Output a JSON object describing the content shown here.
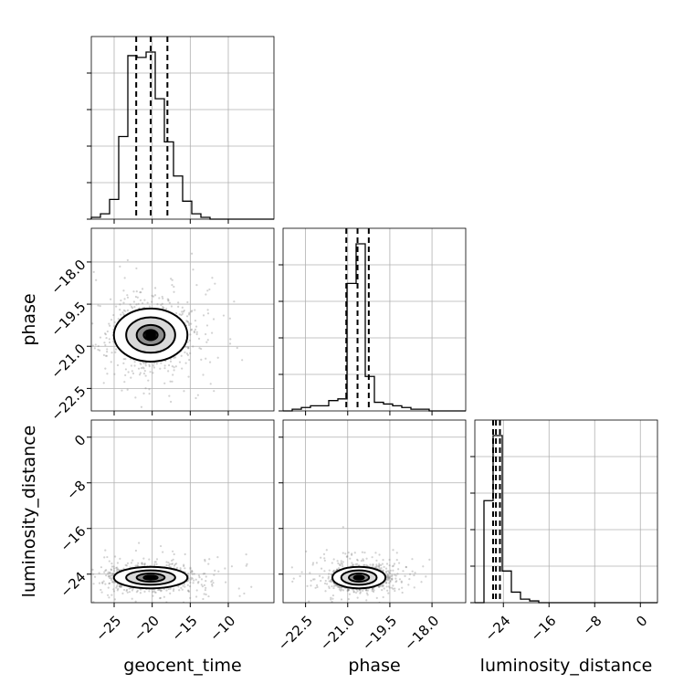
{
  "chart_data": {
    "type": "corner",
    "parameters": [
      "geocent_time",
      "phase",
      "luminosity_distance"
    ],
    "axis_labels": {
      "x": [
        "geocent_time",
        "phase",
        "luminosity_distance"
      ],
      "y": [
        "",
        "phase",
        "luminosity_distance"
      ]
    },
    "ranges": {
      "geocent_time": [
        -28,
        -4
      ],
      "phase": [
        -23.3,
        -16.8
      ],
      "luminosity_distance": [
        -29,
        3
      ]
    },
    "ticks": {
      "geocent_time": {
        "values": [
          -25,
          -20,
          -15,
          -10
        ],
        "labels": [
          "−25",
          "−20",
          "−15",
          "−10"
        ]
      },
      "phase": {
        "values": [
          -22.5,
          -21.0,
          -19.5,
          -18.0
        ],
        "labels": [
          "−22.5",
          "−21.0",
          "−19.5",
          "−18.0"
        ]
      },
      "luminosity_distance": {
        "values": [
          -24,
          -16,
          -8,
          0
        ],
        "labels": [
          "−24",
          "−16",
          "−8",
          "0"
        ]
      }
    },
    "quantiles": {
      "geocent_time": [
        -22.1,
        -20.2,
        -18.0
      ],
      "phase": [
        -21.05,
        -20.65,
        -20.25
      ],
      "luminosity_distance": [
        -25.8,
        -25.3,
        -24.6
      ]
    },
    "histograms": {
      "geocent_time": {
        "edges": [
          -28.0,
          -26.8,
          -25.6,
          -24.4,
          -23.2,
          -22.0,
          -20.8,
          -19.6,
          -18.4,
          -17.2,
          -16.0,
          -14.8,
          -13.6,
          -12.4,
          -11.2,
          -10.0,
          -8.8,
          -7.6,
          -6.4,
          -5.2,
          -4.0
        ],
        "counts": [
          0.01,
          0.03,
          0.11,
          0.46,
          0.91,
          0.9,
          0.93,
          0.67,
          0.43,
          0.24,
          0.1,
          0.03,
          0.01,
          0,
          0,
          0,
          0,
          0,
          0,
          0
        ]
      },
      "phase": {
        "edges": [
          -23.3,
          -22.975,
          -22.65,
          -22.325,
          -22.0,
          -21.675,
          -21.35,
          -21.025,
          -20.7,
          -20.375,
          -20.05,
          -19.725,
          -19.4,
          -19.075,
          -18.75,
          -18.425,
          -18.1,
          -17.775,
          -17.45,
          -17.125,
          -16.8
        ],
        "counts": [
          0,
          0.01,
          0.02,
          0.03,
          0.03,
          0.06,
          0.07,
          0.74,
          0.97,
          0.2,
          0.05,
          0.04,
          0.03,
          0.02,
          0.01,
          0.01,
          0,
          0,
          0,
          0
        ]
      },
      "luminosity_distance": {
        "edges": [
          -29.0,
          -27.4,
          -25.8,
          -24.2,
          -22.6,
          -21.0,
          -19.4,
          -17.8,
          -16.2,
          -14.6,
          -13.0,
          -11.4,
          -9.8,
          -8.2,
          -6.6,
          -5.0,
          -3.4,
          -1.8,
          -0.2,
          1.4,
          3.0
        ],
        "counts": [
          0,
          0.58,
          0.95,
          0.18,
          0.06,
          0.02,
          0.01,
          0,
          0,
          0,
          0,
          0,
          0,
          0,
          0,
          0,
          0,
          0,
          0,
          0
        ]
      }
    },
    "samples": {
      "geocent_time": {
        "mean": -20.2,
        "sd": 2.3
      },
      "phase": {
        "mean": -20.6,
        "sd": 0.45
      },
      "luminosity_distance": {
        "mean": -24.6,
        "sd": 0.9
      }
    },
    "grid": true,
    "scatter_color": "#7f7f7f",
    "line_color": "#000000"
  }
}
